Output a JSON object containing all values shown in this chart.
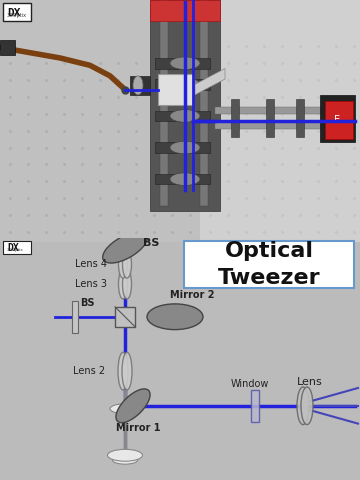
{
  "top_bg": "#c5c5c5",
  "bottom_bg": "#d5d5d5",
  "beam_color": "#2222dd",
  "beam_color2": "#4444bb",
  "title_text": "Optical\nTweezer",
  "title_fontsize": 16,
  "title_box_color": "#ffffff",
  "title_border_color": "#6699cc",
  "labels": {
    "BS_top": "BS",
    "Lens4": "Lens 4",
    "Lens3": "Lens 3",
    "BS_mid": "BS",
    "Mirror2": "Mirror 2",
    "Lens2": "Lens 2",
    "Mirror1": "Mirror 1",
    "Window": "Window",
    "Lens_right": "Lens"
  },
  "label_fontsize": 7,
  "comp_gray": "#909090",
  "comp_light": "#cccccc",
  "comp_dark": "#555555",
  "comp_white": "#e8e8e8",
  "stand_color": "#aaaaaa"
}
